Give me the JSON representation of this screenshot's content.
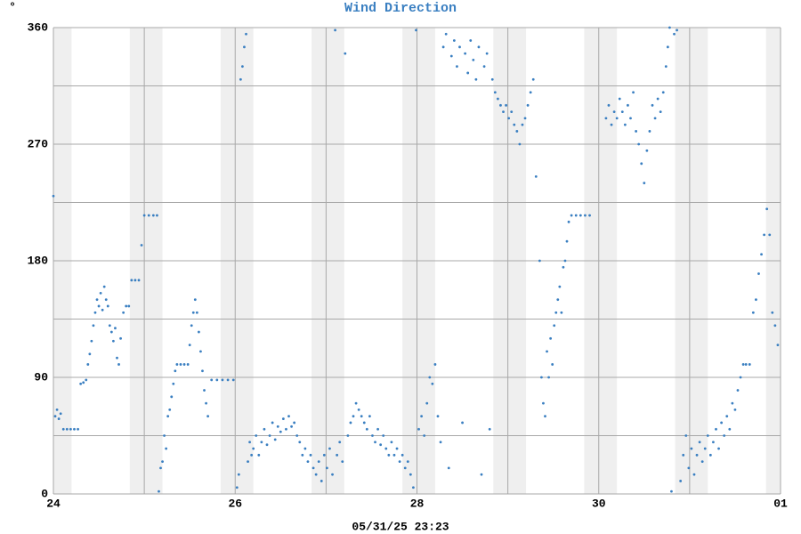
{
  "chart_data": {
    "type": "scatter",
    "title": "Wind Direction",
    "ylabel": "°",
    "footer": "05/31/25 23:23",
    "color": "#3a7fc1",
    "xlim": [
      24,
      32
    ],
    "xticks": [
      24,
      26,
      28,
      30,
      {
        "value": 32,
        "label": "01"
      }
    ],
    "minor_xticks": [
      25,
      27,
      29,
      31
    ],
    "ylim": [
      0,
      360
    ],
    "yticks": [
      0,
      90,
      180,
      270,
      360
    ],
    "minor_yticks": [
      45,
      135,
      225,
      315
    ],
    "grid": true,
    "shaded_ranges": [
      [
        24,
        24.2
      ],
      [
        24.84,
        25.2
      ],
      [
        25.84,
        26.2
      ],
      [
        26.84,
        27.2
      ],
      [
        27.84,
        28.2
      ],
      [
        28.84,
        29.2
      ],
      [
        29.84,
        30.2
      ],
      [
        30.84,
        31.2
      ],
      [
        31.84,
        32
      ]
    ],
    "x": [
      24.0,
      24.02,
      24.04,
      24.06,
      24.08,
      24.11,
      24.15,
      24.19,
      24.23,
      24.27,
      24.3,
      24.33,
      24.36,
      24.38,
      24.4,
      24.42,
      24.44,
      24.46,
      24.48,
      24.5,
      24.52,
      24.54,
      24.56,
      24.58,
      24.6,
      24.62,
      24.64,
      24.66,
      24.68,
      24.7,
      24.72,
      24.74,
      24.77,
      24.8,
      24.83,
      24.86,
      24.9,
      24.94,
      24.97,
      25.0,
      25.05,
      25.1,
      25.14,
      25.16,
      25.18,
      25.2,
      25.22,
      25.24,
      25.26,
      25.28,
      25.3,
      25.32,
      25.34,
      25.36,
      25.4,
      25.44,
      25.48,
      25.5,
      25.52,
      25.54,
      25.56,
      25.58,
      25.6,
      25.62,
      25.64,
      25.66,
      25.68,
      25.7,
      25.74,
      25.8,
      25.86,
      25.92,
      25.98,
      26.02,
      26.04,
      26.06,
      26.08,
      26.1,
      26.12,
      26.14,
      26.16,
      26.18,
      26.2,
      26.23,
      26.26,
      26.29,
      26.32,
      26.35,
      26.38,
      26.41,
      26.44,
      26.47,
      26.5,
      26.53,
      26.56,
      26.59,
      26.62,
      26.65,
      26.68,
      26.71,
      26.74,
      26.77,
      26.8,
      26.83,
      26.86,
      26.89,
      26.92,
      26.95,
      26.98,
      27.01,
      27.04,
      27.07,
      27.1,
      27.12,
      27.15,
      27.18,
      27.21,
      27.24,
      27.27,
      27.3,
      27.33,
      27.36,
      27.39,
      27.42,
      27.45,
      27.48,
      27.51,
      27.54,
      27.57,
      27.6,
      27.63,
      27.66,
      27.69,
      27.72,
      27.75,
      27.78,
      27.81,
      27.84,
      27.87,
      27.9,
      27.93,
      27.96,
      27.99,
      28.02,
      28.05,
      28.08,
      28.11,
      28.14,
      28.17,
      28.2,
      28.23,
      28.26,
      28.29,
      28.32,
      28.35,
      28.38,
      28.41,
      28.44,
      28.47,
      28.5,
      28.53,
      28.56,
      28.59,
      28.62,
      28.65,
      28.68,
      28.71,
      28.74,
      28.77,
      28.8,
      28.83,
      28.86,
      28.89,
      28.92,
      28.95,
      28.98,
      29.01,
      29.04,
      29.07,
      29.1,
      29.13,
      29.16,
      29.19,
      29.22,
      29.25,
      29.28,
      29.31,
      29.35,
      29.37,
      29.39,
      29.41,
      29.43,
      29.45,
      29.47,
      29.49,
      29.51,
      29.53,
      29.55,
      29.57,
      29.59,
      29.61,
      29.63,
      29.65,
      29.67,
      29.7,
      29.75,
      29.8,
      29.85,
      29.9,
      30.08,
      30.11,
      30.14,
      30.17,
      30.2,
      30.23,
      30.26,
      30.29,
      30.32,
      30.35,
      30.38,
      30.41,
      30.44,
      30.47,
      30.5,
      30.53,
      30.56,
      30.59,
      30.62,
      30.65,
      30.68,
      30.71,
      30.74,
      30.76,
      30.78,
      30.8,
      30.83,
      30.86,
      30.9,
      30.93,
      30.96,
      30.99,
      31.02,
      31.05,
      31.08,
      31.11,
      31.14,
      31.17,
      31.2,
      31.23,
      31.26,
      31.29,
      31.32,
      31.35,
      31.38,
      31.41,
      31.44,
      31.47,
      31.5,
      31.53,
      31.56,
      31.59,
      31.62,
      31.66,
      31.7,
      31.73,
      31.76,
      31.79,
      31.82,
      31.85,
      31.88,
      31.91,
      31.94,
      31.97
    ],
    "values": [
      230,
      60,
      65,
      58,
      62,
      50,
      50,
      50,
      50,
      50,
      85,
      86,
      88,
      100,
      108,
      118,
      130,
      140,
      150,
      145,
      155,
      142,
      160,
      150,
      145,
      130,
      125,
      118,
      128,
      105,
      100,
      120,
      140,
      145,
      145,
      165,
      165,
      165,
      192,
      215,
      215,
      215,
      215,
      2,
      20,
      25,
      45,
      35,
      60,
      65,
      75,
      85,
      95,
      100,
      100,
      100,
      100,
      115,
      130,
      140,
      150,
      140,
      125,
      110,
      95,
      80,
      70,
      60,
      88,
      88,
      88,
      88,
      88,
      5,
      15,
      320,
      330,
      345,
      355,
      25,
      40,
      30,
      35,
      45,
      30,
      40,
      50,
      38,
      45,
      55,
      42,
      52,
      48,
      58,
      50,
      60,
      52,
      55,
      45,
      40,
      30,
      35,
      25,
      30,
      20,
      15,
      25,
      10,
      30,
      20,
      35,
      15,
      358,
      30,
      40,
      25,
      340,
      45,
      55,
      60,
      70,
      65,
      60,
      55,
      50,
      60,
      45,
      40,
      50,
      38,
      45,
      35,
      30,
      40,
      30,
      35,
      25,
      30,
      20,
      25,
      15,
      5,
      358,
      50,
      60,
      45,
      70,
      90,
      85,
      100,
      60,
      40,
      345,
      355,
      20,
      338,
      350,
      330,
      345,
      55,
      340,
      325,
      350,
      335,
      320,
      345,
      15,
      330,
      340,
      50,
      320,
      310,
      305,
      300,
      295,
      300,
      290,
      295,
      285,
      280,
      270,
      285,
      290,
      300,
      310,
      320,
      245,
      180,
      90,
      70,
      60,
      110,
      90,
      120,
      100,
      130,
      140,
      150,
      160,
      140,
      175,
      180,
      195,
      210,
      215,
      215,
      215,
      215,
      215,
      290,
      300,
      285,
      295,
      290,
      305,
      295,
      285,
      300,
      290,
      310,
      280,
      270,
      255,
      240,
      265,
      280,
      300,
      290,
      305,
      295,
      310,
      330,
      345,
      360,
      2,
      355,
      358,
      10,
      30,
      45,
      20,
      35,
      15,
      30,
      40,
      25,
      35,
      45,
      30,
      40,
      50,
      35,
      55,
      45,
      60,
      50,
      70,
      65,
      80,
      90,
      100,
      100,
      100,
      140,
      150,
      170,
      185,
      200,
      220,
      200,
      140,
      130,
      115
    ]
  }
}
